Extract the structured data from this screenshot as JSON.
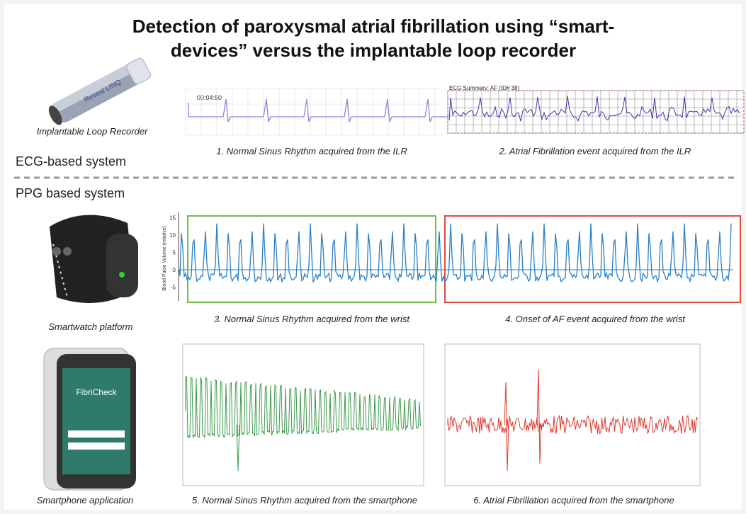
{
  "title": [
    "Detection of paroxysmal atrial fibrillation using “smart-",
    "devices” versus the implantable loop recorder"
  ],
  "ecg_section": {
    "label": "ECG-based system",
    "device": {
      "caption": "Implantable Loop Recorder",
      "brand": "Reveal LINQ"
    },
    "panels": [
      {
        "caption": "1. Normal Sinus Rhythm acquired from the ILR",
        "time": "00:04:50"
      },
      {
        "caption": "2. Atrial Fibrillation event acquired from the ILR",
        "header": "ECG Summary: AF (ID# 38)"
      }
    ]
  },
  "ppg_section": {
    "label": "PPG based system",
    "watch": {
      "caption": "Smartwatch platform",
      "axis_label": "Blood Pulse Volume (relative)",
      "ticks": [
        15,
        10,
        5,
        0,
        -5
      ],
      "panels": [
        {
          "caption": "3. Normal Sinus Rhythm acquired from the wrist"
        },
        {
          "caption": "4. Onset of AF event acquired from the wrist"
        }
      ]
    },
    "phone": {
      "caption": "Smartphone application",
      "app": "FibriCheck",
      "panels": [
        {
          "caption": "5. Normal Sinus Rhythm acquired from the smartphone"
        },
        {
          "caption": "6. Atrial Fibrillation acquired from the smartphone"
        }
      ]
    }
  }
}
